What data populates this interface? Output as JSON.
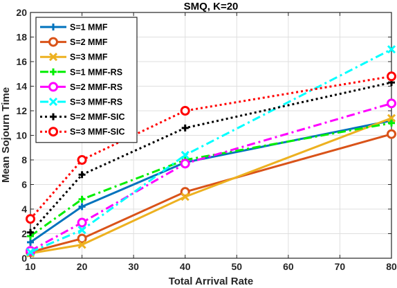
{
  "chart_data": {
    "type": "line",
    "title": "SMQ, K=20",
    "xlabel": "Total Arrival Rate",
    "ylabel": "Mean Sojourn Time",
    "xlim": [
      10,
      80
    ],
    "ylim": [
      0,
      20
    ],
    "xticks": [
      10,
      20,
      30,
      40,
      50,
      60,
      70,
      80
    ],
    "yticks": [
      0,
      2,
      4,
      6,
      8,
      10,
      12,
      14,
      16,
      18,
      20
    ],
    "grid": true,
    "legend_position": "top-left",
    "x": [
      10,
      20,
      40,
      80
    ],
    "series": [
      {
        "name": "S=1 MMF",
        "values": [
          1.3,
          4.2,
          7.8,
          11.2
        ],
        "color": "#0072BD",
        "style": "solid",
        "marker": "plus"
      },
      {
        "name": "S=2 MMF",
        "values": [
          0.5,
          1.6,
          5.4,
          10.1
        ],
        "color": "#D95319",
        "style": "solid",
        "marker": "circle"
      },
      {
        "name": "S=3 MMF",
        "values": [
          0.4,
          1.1,
          5.0,
          11.4
        ],
        "color": "#EDB120",
        "style": "solid",
        "marker": "x"
      },
      {
        "name": "S=1 MMF-RS",
        "values": [
          1.8,
          4.8,
          8.0,
          11.0
        ],
        "color": "#00EE00",
        "style": "dashdot",
        "marker": "plus"
      },
      {
        "name": "S=2 MMF-RS",
        "values": [
          0.6,
          2.9,
          7.7,
          12.6
        ],
        "color": "#FF00FF",
        "style": "dashdot",
        "marker": "circle"
      },
      {
        "name": "S=3 MMF-RS",
        "values": [
          0.5,
          2.3,
          8.4,
          17.0
        ],
        "color": "#00FFFF",
        "style": "dashdot",
        "marker": "x"
      },
      {
        "name": "S=2 MMF-SIC",
        "values": [
          2.1,
          6.8,
          10.6,
          14.3
        ],
        "color": "#000000",
        "style": "dotted",
        "marker": "plus"
      },
      {
        "name": "S=3 MMF-SIC",
        "values": [
          3.2,
          8.0,
          12.0,
          14.8
        ],
        "color": "#FF0000",
        "style": "dotted",
        "marker": "circle"
      }
    ]
  }
}
